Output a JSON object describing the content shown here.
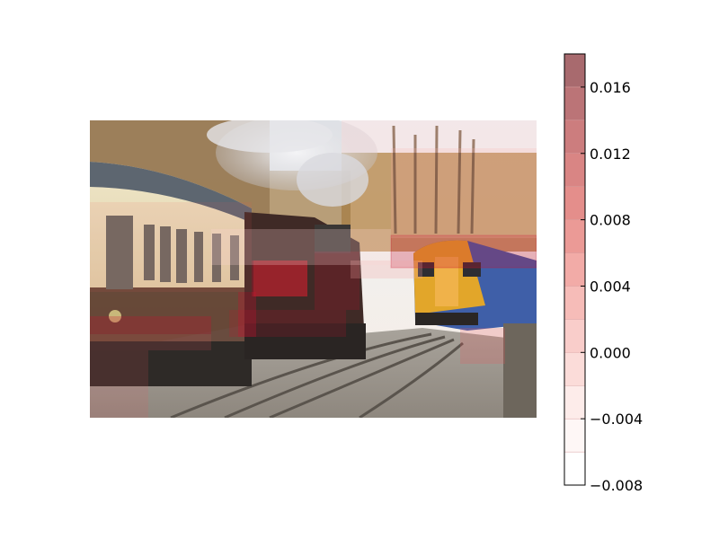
{
  "chart_data": {
    "type": "heatmap",
    "title": "",
    "xlabel": "",
    "ylabel": "",
    "background_image": "railway photograph: steam locomotive with coaches on left, modern train approaching on right, bare autumn trees and steam",
    "colorbar": {
      "ticks": [
        -0.008,
        -0.004,
        0.0,
        0.004,
        0.008,
        0.012,
        0.016
      ],
      "tick_labels": [
        "−0.008",
        "−0.004",
        "0.000",
        "0.004",
        "0.008",
        "0.012",
        "0.016"
      ],
      "range": [
        -0.008,
        0.018
      ],
      "levels": [
        -0.008,
        -0.006,
        -0.004,
        -0.002,
        0.0,
        0.002,
        0.004,
        0.006,
        0.008,
        0.01,
        0.012,
        0.014,
        0.016,
        0.018
      ],
      "colors": [
        "#ffffff",
        "#fef7f6",
        "#fdecea",
        "#fbdcd9",
        "#f9cdca",
        "#f6bcb8",
        "#f2aba7",
        "#eb9a96",
        "#e48e8b",
        "#d98584",
        "#cc7d7e",
        "#bb7477",
        "#a86a6e"
      ],
      "colormap": "white-to-red"
    },
    "overlay_colors": {
      "strong": "#c8102e",
      "medium": "#e8555c",
      "light": "#f4a3a3",
      "faint": "#fbd5d2"
    }
  }
}
